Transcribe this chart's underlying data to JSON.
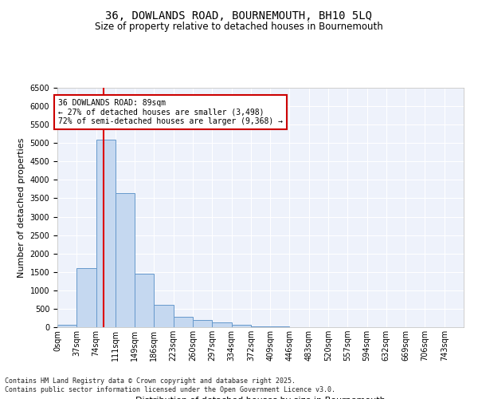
{
  "title1": "36, DOWLANDS ROAD, BOURNEMOUTH, BH10 5LQ",
  "title2": "Size of property relative to detached houses in Bournemouth",
  "xlabel": "Distribution of detached houses by size in Bournemouth",
  "ylabel": "Number of detached properties",
  "footnote1": "Contains HM Land Registry data © Crown copyright and database right 2025.",
  "footnote2": "Contains public sector information licensed under the Open Government Licence v3.0.",
  "annotation_title": "36 DOWLANDS ROAD: 89sqm",
  "annotation_line1": "← 27% of detached houses are smaller (3,498)",
  "annotation_line2": "72% of semi-detached houses are larger (9,368) →",
  "property_size": 89,
  "bar_categories": [
    "0sqm",
    "37sqm",
    "74sqm",
    "111sqm",
    "149sqm",
    "186sqm",
    "223sqm",
    "260sqm",
    "297sqm",
    "334sqm",
    "372sqm",
    "409sqm",
    "446sqm",
    "483sqm",
    "520sqm",
    "557sqm",
    "594sqm",
    "632sqm",
    "669sqm",
    "706sqm",
    "743sqm"
  ],
  "bar_values": [
    60,
    1600,
    5100,
    3650,
    1450,
    600,
    290,
    190,
    130,
    60,
    25,
    12,
    5,
    3,
    2,
    1,
    0,
    0,
    0,
    0,
    0
  ],
  "bar_color": "#c5d8f0",
  "bar_edge_color": "#6699cc",
  "vline_x": 89,
  "vline_color": "#dd0000",
  "ylim": [
    0,
    6500
  ],
  "yticks": [
    0,
    500,
    1000,
    1500,
    2000,
    2500,
    3000,
    3500,
    4000,
    4500,
    5000,
    5500,
    6000,
    6500
  ],
  "bg_color": "#eef2fb",
  "grid_color": "#ffffff",
  "annotation_box_color": "#cc0000",
  "title_fontsize": 10,
  "subtitle_fontsize": 8.5,
  "axis_label_fontsize": 8,
  "tick_fontsize": 7,
  "annotation_fontsize": 7,
  "footnote_fontsize": 6
}
